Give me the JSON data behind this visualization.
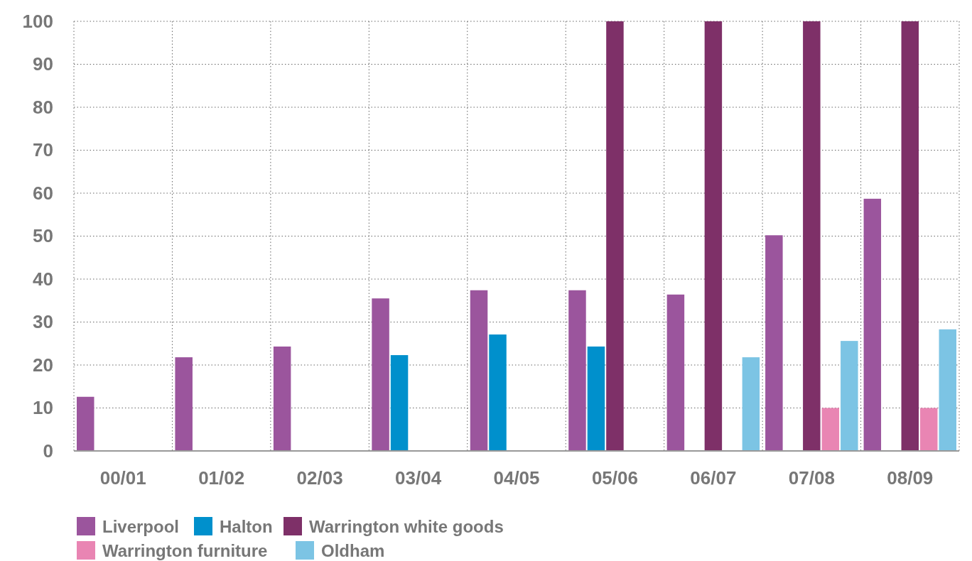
{
  "chart_data": {
    "type": "bar",
    "categories": [
      "00/01",
      "01/02",
      "02/03",
      "03/04",
      "04/05",
      "05/06",
      "06/07",
      "07/08",
      "08/09"
    ],
    "series": [
      {
        "name": "Liverpool",
        "color": "#9b559d",
        "values": [
          12.6,
          21.8,
          24.3,
          35.5,
          37.4,
          37.4,
          36.4,
          50.2,
          58.7
        ]
      },
      {
        "name": "Halton",
        "color": "#0090cc",
        "values": [
          null,
          null,
          null,
          22.3,
          27.1,
          24.3,
          null,
          null,
          null
        ]
      },
      {
        "name": "Warrington white goods",
        "color": "#7e3068",
        "values": [
          null,
          null,
          null,
          null,
          null,
          100,
          100,
          100,
          100
        ]
      },
      {
        "name": "Warrington furniture",
        "color": "#e985b3",
        "values": [
          null,
          null,
          null,
          null,
          null,
          null,
          null,
          10,
          10
        ]
      },
      {
        "name": "Oldham",
        "color": "#7cc4e4",
        "values": [
          null,
          null,
          null,
          null,
          null,
          null,
          21.8,
          25.6,
          28.3
        ]
      }
    ],
    "ylim": [
      0,
      100
    ],
    "yticks": [
      0,
      10,
      20,
      30,
      40,
      50,
      60,
      70,
      80,
      90,
      100
    ],
    "grid": true,
    "legend": "bottom"
  }
}
